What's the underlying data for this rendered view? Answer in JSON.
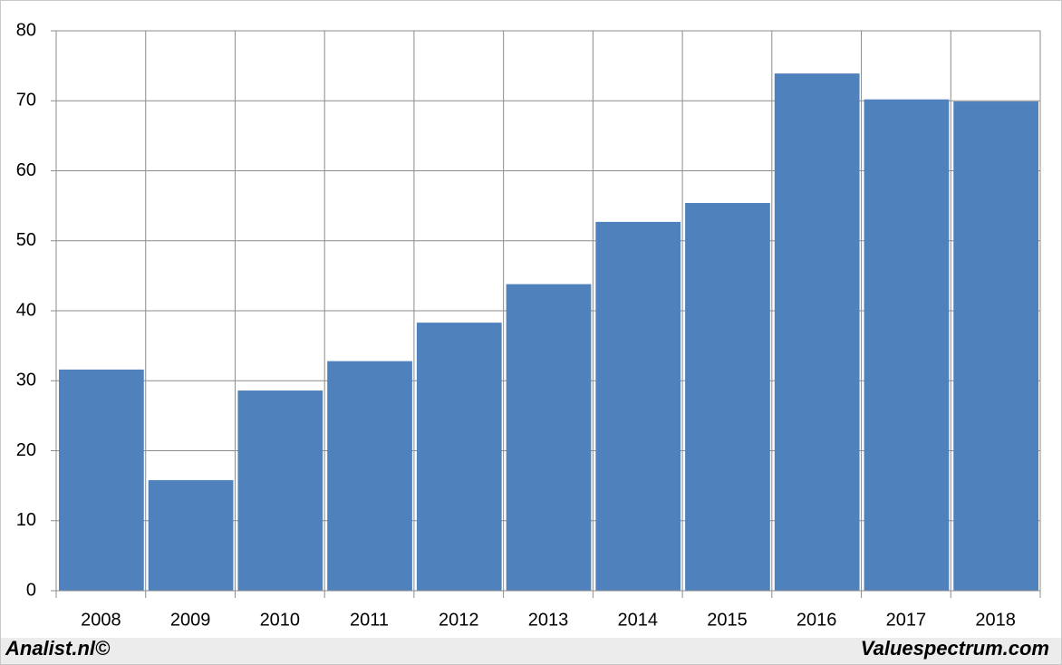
{
  "chart_data": {
    "type": "bar",
    "categories": [
      "2008",
      "2009",
      "2010",
      "2011",
      "2012",
      "2013",
      "2014",
      "2015",
      "2016",
      "2017",
      "2018"
    ],
    "values": [
      31.6,
      15.8,
      28.6,
      32.8,
      38.3,
      43.8,
      52.7,
      55.4,
      73.9,
      70.2,
      69.9
    ],
    "color": "#4f81bd",
    "ylim": [
      0,
      80
    ],
    "yticks": [
      0,
      10,
      20,
      30,
      40,
      50,
      60,
      70,
      80
    ],
    "grid": true,
    "annotations": [
      "Analist.nl©",
      "Valuespectrum.com"
    ]
  }
}
